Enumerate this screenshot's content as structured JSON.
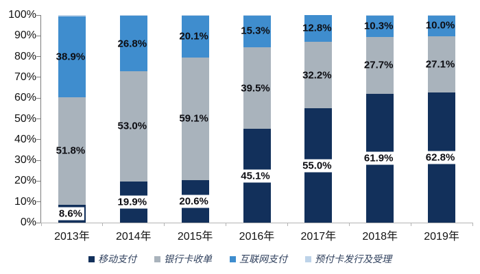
{
  "chart_data": {
    "type": "bar",
    "variant": "stacked-100-percent",
    "title": "",
    "xlabel": "",
    "ylabel": "",
    "grid": false,
    "legend_position": "bottom",
    "categories": [
      "2013年",
      "2014年",
      "2015年",
      "2016年",
      "2017年",
      "2018年",
      "2019年"
    ],
    "series": [
      {
        "name": "移动支付",
        "color": "#12305b",
        "values": [
          8.6,
          19.9,
          20.6,
          45.1,
          55.0,
          61.9,
          62.8
        ],
        "show_labels": true,
        "label_boxed": true
      },
      {
        "name": "银行卡收单",
        "color": "#a9b3bc",
        "values": [
          51.8,
          53.0,
          59.1,
          39.5,
          32.2,
          27.7,
          27.1
        ],
        "show_labels": true,
        "label_boxed": false
      },
      {
        "name": "互联网支付",
        "color": "#3f8dce",
        "values": [
          38.9,
          26.8,
          20.1,
          15.3,
          12.8,
          10.3,
          10.0
        ],
        "show_labels": true,
        "label_boxed": false
      },
      {
        "name": "预付卡发行及受理",
        "color": "#bdd3e9",
        "values": [
          0.7,
          0.3,
          0.2,
          0.1,
          0.0,
          0.1,
          0.1
        ],
        "show_labels": false,
        "label_boxed": false
      }
    ],
    "y_axis": {
      "min": 0,
      "max": 100,
      "tick_labels": [
        "0%",
        "10%",
        "20%",
        "30%",
        "40%",
        "50%",
        "60%",
        "70%",
        "80%",
        "90%",
        "100%"
      ]
    }
  }
}
